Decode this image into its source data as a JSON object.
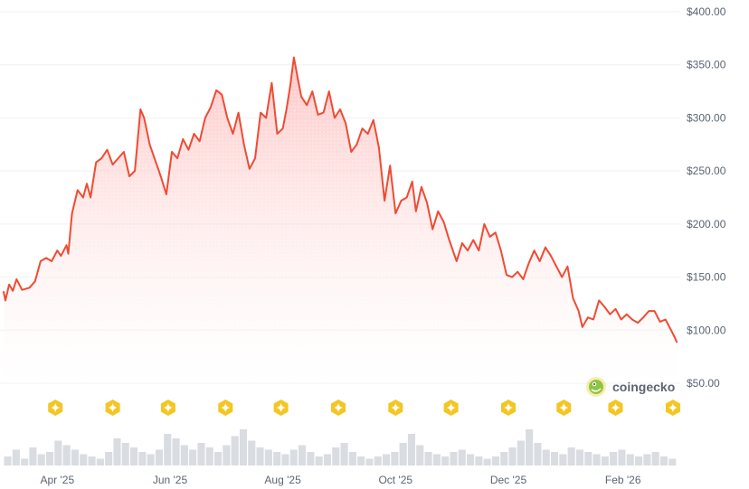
{
  "colors": {
    "line": "#ef4b32",
    "area_top": "#ffb3b3",
    "area_bottom": "#ffffff",
    "grid": "#eef0f3",
    "marker": "#f3c623",
    "volume": "#d0d3da",
    "brand_green": "#8dc63f"
  },
  "brand": {
    "name": "coingecko",
    "icon": "gecko-logo-icon"
  },
  "chart_data": {
    "type": "area",
    "title": "",
    "xlabel": "",
    "ylabel": "",
    "y_axis_position": "right",
    "ylim": [
      50,
      400
    ],
    "y_ticks": [
      50,
      100,
      150,
      200,
      250,
      300,
      350,
      400
    ],
    "y_tick_labels": [
      "$50.00",
      "$100.00",
      "$150.00",
      "$200.00",
      "$250.00",
      "$300.00",
      "$350.00",
      "$400.00"
    ],
    "x_range": [
      "2025-03-03",
      "2026-03-02"
    ],
    "x_ticks": [
      {
        "date": "2025-04-01",
        "label": "Apr '25"
      },
      {
        "date": "2025-06-01",
        "label": "Jun '25"
      },
      {
        "date": "2025-08-01",
        "label": "Aug '25"
      },
      {
        "date": "2025-10-01",
        "label": "Oct '25"
      },
      {
        "date": "2025-12-01",
        "label": "Dec '25"
      },
      {
        "date": "2026-02-01",
        "label": "Feb '26"
      }
    ],
    "grid": true,
    "series": [
      {
        "points": [
          [
            "2025-03-03",
            136
          ],
          [
            "2025-03-04",
            128
          ],
          [
            "2025-03-06",
            143
          ],
          [
            "2025-03-08",
            137
          ],
          [
            "2025-03-10",
            148
          ],
          [
            "2025-03-13",
            138
          ],
          [
            "2025-03-17",
            140
          ],
          [
            "2025-03-20",
            146
          ],
          [
            "2025-03-23",
            165
          ],
          [
            "2025-03-26",
            168
          ],
          [
            "2025-03-29",
            165
          ],
          [
            "2025-04-01",
            175
          ],
          [
            "2025-04-03",
            170
          ],
          [
            "2025-04-06",
            180
          ],
          [
            "2025-04-07",
            172
          ],
          [
            "2025-04-09",
            210
          ],
          [
            "2025-04-12",
            232
          ],
          [
            "2025-04-15",
            225
          ],
          [
            "2025-04-17",
            238
          ],
          [
            "2025-04-19",
            225
          ],
          [
            "2025-04-22",
            258
          ],
          [
            "2025-04-25",
            262
          ],
          [
            "2025-04-28",
            270
          ],
          [
            "2025-05-01",
            256
          ],
          [
            "2025-05-04",
            262
          ],
          [
            "2025-05-07",
            268
          ],
          [
            "2025-05-10",
            245
          ],
          [
            "2025-05-13",
            250
          ],
          [
            "2025-05-16",
            308
          ],
          [
            "2025-05-18",
            300
          ],
          [
            "2025-05-21",
            275
          ],
          [
            "2025-05-24",
            260
          ],
          [
            "2025-05-27",
            245
          ],
          [
            "2025-05-30",
            228
          ],
          [
            "2025-06-02",
            268
          ],
          [
            "2025-06-05",
            262
          ],
          [
            "2025-06-08",
            280
          ],
          [
            "2025-06-11",
            270
          ],
          [
            "2025-06-14",
            285
          ],
          [
            "2025-06-17",
            278
          ],
          [
            "2025-06-20",
            300
          ],
          [
            "2025-06-23",
            310
          ],
          [
            "2025-06-26",
            326
          ],
          [
            "2025-06-29",
            322
          ],
          [
            "2025-07-02",
            300
          ],
          [
            "2025-07-05",
            285
          ],
          [
            "2025-07-08",
            305
          ],
          [
            "2025-07-11",
            275
          ],
          [
            "2025-07-14",
            252
          ],
          [
            "2025-07-17",
            262
          ],
          [
            "2025-07-20",
            305
          ],
          [
            "2025-07-23",
            300
          ],
          [
            "2025-07-26",
            333
          ],
          [
            "2025-07-29",
            285
          ],
          [
            "2025-08-01",
            290
          ],
          [
            "2025-08-03",
            308
          ],
          [
            "2025-08-05",
            330
          ],
          [
            "2025-08-07",
            357
          ],
          [
            "2025-08-09",
            338
          ],
          [
            "2025-08-11",
            320
          ],
          [
            "2025-08-14",
            312
          ],
          [
            "2025-08-17",
            325
          ],
          [
            "2025-08-20",
            303
          ],
          [
            "2025-08-23",
            305
          ],
          [
            "2025-08-26",
            325
          ],
          [
            "2025-08-29",
            300
          ],
          [
            "2025-09-01",
            308
          ],
          [
            "2025-09-04",
            295
          ],
          [
            "2025-09-07",
            268
          ],
          [
            "2025-09-10",
            275
          ],
          [
            "2025-09-13",
            290
          ],
          [
            "2025-09-16",
            285
          ],
          [
            "2025-09-19",
            298
          ],
          [
            "2025-09-22",
            272
          ],
          [
            "2025-09-25",
            222
          ],
          [
            "2025-09-28",
            255
          ],
          [
            "2025-10-01",
            210
          ],
          [
            "2025-10-04",
            222
          ],
          [
            "2025-10-07",
            225
          ],
          [
            "2025-10-10",
            240
          ],
          [
            "2025-10-12",
            212
          ],
          [
            "2025-10-15",
            235
          ],
          [
            "2025-10-18",
            220
          ],
          [
            "2025-10-21",
            195
          ],
          [
            "2025-10-24",
            212
          ],
          [
            "2025-10-27",
            202
          ],
          [
            "2025-10-30",
            185
          ],
          [
            "2025-11-03",
            165
          ],
          [
            "2025-11-06",
            182
          ],
          [
            "2025-11-09",
            175
          ],
          [
            "2025-11-12",
            185
          ],
          [
            "2025-11-15",
            175
          ],
          [
            "2025-11-18",
            200
          ],
          [
            "2025-11-21",
            188
          ],
          [
            "2025-11-24",
            192
          ],
          [
            "2025-11-27",
            175
          ],
          [
            "2025-11-30",
            152
          ],
          [
            "2025-12-03",
            150
          ],
          [
            "2025-12-06",
            155
          ],
          [
            "2025-12-09",
            148
          ],
          [
            "2025-12-12",
            163
          ],
          [
            "2025-12-15",
            175
          ],
          [
            "2025-12-18",
            165
          ],
          [
            "2025-12-21",
            178
          ],
          [
            "2025-12-24",
            170
          ],
          [
            "2025-12-27",
            160
          ],
          [
            "2025-12-30",
            150
          ],
          [
            "2026-01-02",
            160
          ],
          [
            "2026-01-05",
            130
          ],
          [
            "2026-01-08",
            118
          ],
          [
            "2026-01-10",
            103
          ],
          [
            "2026-01-13",
            112
          ],
          [
            "2026-01-16",
            110
          ],
          [
            "2026-01-19",
            128
          ],
          [
            "2026-01-22",
            122
          ],
          [
            "2026-01-25",
            115
          ],
          [
            "2026-01-28",
            120
          ],
          [
            "2026-01-31",
            110
          ],
          [
            "2026-02-03",
            115
          ],
          [
            "2026-02-06",
            110
          ],
          [
            "2026-02-09",
            107
          ],
          [
            "2026-02-12",
            112
          ],
          [
            "2026-02-15",
            118
          ],
          [
            "2026-02-18",
            118
          ],
          [
            "2026-02-21",
            108
          ],
          [
            "2026-02-24",
            110
          ],
          [
            "2026-02-27",
            100
          ],
          [
            "2026-03-01",
            93
          ],
          [
            "2026-03-02",
            89
          ]
        ]
      }
    ],
    "event_markers": {
      "icon": "star-diamond-icon",
      "dates": [
        "2025-03-31",
        "2025-05-01",
        "2025-05-31",
        "2025-07-01",
        "2025-07-31",
        "2025-08-31",
        "2025-10-01",
        "2025-10-31",
        "2025-12-01",
        "2025-12-31",
        "2026-01-28",
        "2026-02-28"
      ]
    },
    "volume": {
      "type": "bar",
      "relative_values": [
        0.2,
        0.35,
        0.15,
        0.4,
        0.25,
        0.3,
        0.55,
        0.45,
        0.35,
        0.25,
        0.2,
        0.15,
        0.3,
        0.6,
        0.5,
        0.4,
        0.3,
        0.25,
        0.35,
        0.7,
        0.6,
        0.45,
        0.35,
        0.5,
        0.4,
        0.3,
        0.45,
        0.65,
        0.8,
        0.55,
        0.4,
        0.35,
        0.3,
        0.25,
        0.35,
        0.45,
        0.3,
        0.2,
        0.25,
        0.4,
        0.5,
        0.3,
        0.2,
        0.15,
        0.2,
        0.25,
        0.3,
        0.5,
        0.7,
        0.45,
        0.3,
        0.25,
        0.2,
        0.3,
        0.35,
        0.25,
        0.2,
        0.15,
        0.2,
        0.3,
        0.4,
        0.55,
        0.8,
        0.5,
        0.35,
        0.3,
        0.25,
        0.4,
        0.35,
        0.3,
        0.25,
        0.2,
        0.3,
        0.35,
        0.25,
        0.2,
        0.25,
        0.3,
        0.2,
        0.15
      ]
    }
  }
}
